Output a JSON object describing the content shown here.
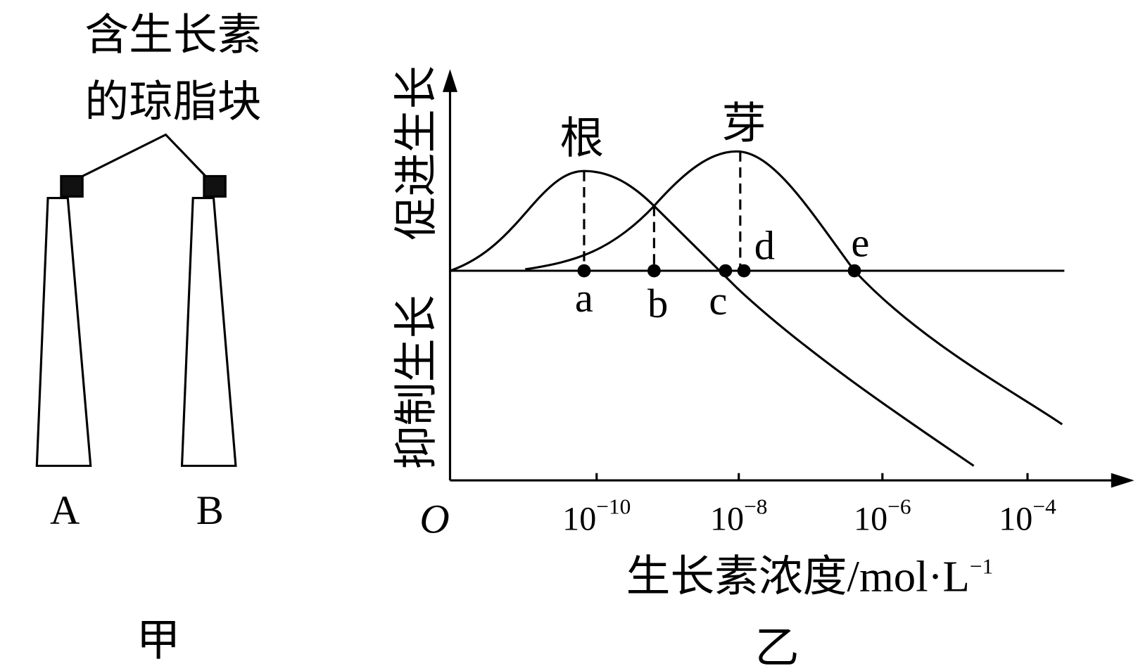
{
  "panel_a": {
    "block_label": [
      "含生长素",
      "的琼脂块"
    ],
    "stems": [
      "A",
      "B"
    ],
    "caption": "甲"
  },
  "panel_b": {
    "curves": [
      "根",
      "芽"
    ],
    "y_axis_up": "促进生长",
    "y_axis_down": "抑制生长",
    "origin": "O",
    "x_ticks": [
      {
        "base": "10",
        "exp": "−10"
      },
      {
        "base": "10",
        "exp": "−8"
      },
      {
        "base": "10",
        "exp": "−6"
      },
      {
        "base": "10",
        "exp": "−4"
      }
    ],
    "points": [
      "a",
      "b",
      "c",
      "d",
      "e"
    ],
    "x_axis_label": {
      "text": "生长素浓度/mol·L",
      "exp": "−1"
    },
    "caption": "乙"
  }
}
